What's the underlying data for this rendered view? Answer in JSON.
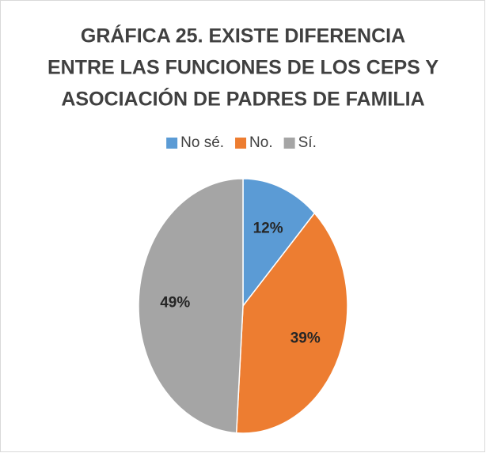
{
  "chart_data": {
    "type": "pie",
    "title": [
      "GRÁFICA 25. EXISTE DIFERENCIA",
      "ENTRE LAS FUNCIONES DE LOS CEPS Y",
      "ASOCIACIÓN DE PADRES DE FAMILIA"
    ],
    "categories": [
      "No sé.",
      "No.",
      "Sí."
    ],
    "values": [
      12,
      39,
      49
    ],
    "value_labels": [
      "12%",
      "39%",
      "49%"
    ],
    "colors": [
      "#5b9bd5",
      "#ed7d31",
      "#a5a5a5"
    ],
    "legend": "top"
  }
}
